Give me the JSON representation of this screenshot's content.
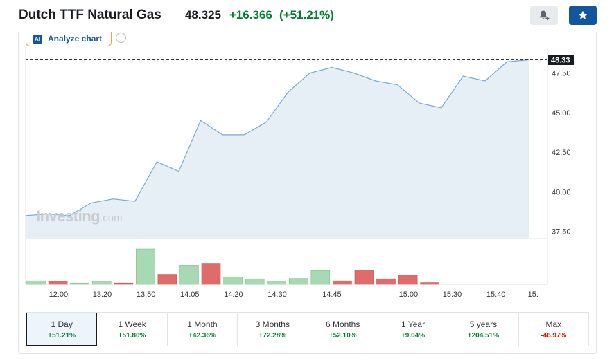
{
  "header": {
    "title": "Dutch TTF Natural Gas",
    "price": "48.325",
    "change": "+16.366",
    "change_pct": "(+51.21%)"
  },
  "toolbar": {
    "alert_icon": "bell-plus-icon",
    "watchlist_icon": "star-icon",
    "analyze_badge": "AI",
    "analyze_label": "Analyze chart",
    "info_icon": "info-icon",
    "info_glyph": "i"
  },
  "watermark": {
    "brand": "Investing",
    "suffix": ".com"
  },
  "colors": {
    "line": "#7aa7d4",
    "area": "#e6eef6",
    "up": "#a7d9b3",
    "down": "#e06b6b",
    "positive_text": "#007c32",
    "negative_text": "#d91400",
    "accent": "#1256a0"
  },
  "chart_data": {
    "type": "area",
    "last_price_label": "48.33",
    "last_price": 48.33,
    "y_ticks": [
      "47.50",
      "45.00",
      "42.50",
      "40.00",
      "37.50"
    ],
    "y_tick_values": [
      47.5,
      45.0,
      42.5,
      40.0,
      37.5
    ],
    "ylim": [
      37.05,
      49.05
    ],
    "x_ticks": [
      "12:00",
      "13:20",
      "13:50",
      "14:05",
      "14:20",
      "14:30",
      "14:45",
      "15:00",
      "15:30",
      "15:40",
      "15:"
    ],
    "x_tick_positions": [
      1.5,
      3.5,
      5.5,
      7.5,
      9.5,
      11.5,
      14.0,
      17.5,
      19.5,
      21.5,
      23.2
    ],
    "series": [
      {
        "values": [
          38.5,
          38.6,
          38.5,
          39.3,
          39.55,
          39.4,
          41.9,
          41.3,
          44.5,
          43.6,
          43.6,
          44.4,
          46.3,
          47.5,
          47.85,
          47.5,
          47.0,
          46.75,
          45.6,
          45.3,
          47.3,
          47.0,
          48.2,
          48.33
        ]
      }
    ],
    "volume": [
      {
        "v": 0.08,
        "dir": "up"
      },
      {
        "v": 0.07,
        "dir": "down"
      },
      {
        "v": 0.03,
        "dir": "up"
      },
      {
        "v": 0.07,
        "dir": "up"
      },
      {
        "v": 0.03,
        "dir": "down"
      },
      {
        "v": 0.85,
        "dir": "up"
      },
      {
        "v": 0.24,
        "dir": "down"
      },
      {
        "v": 0.46,
        "dir": "up"
      },
      {
        "v": 0.49,
        "dir": "down"
      },
      {
        "v": 0.18,
        "dir": "up"
      },
      {
        "v": 0.13,
        "dir": "up"
      },
      {
        "v": 0.07,
        "dir": "up"
      },
      {
        "v": 0.14,
        "dir": "up"
      },
      {
        "v": 0.33,
        "dir": "up"
      },
      {
        "v": 0.08,
        "dir": "down"
      },
      {
        "v": 0.34,
        "dir": "down"
      },
      {
        "v": 0.13,
        "dir": "down"
      },
      {
        "v": 0.22,
        "dir": "down"
      },
      {
        "v": 0.04,
        "dir": "down"
      }
    ]
  },
  "tabs": [
    {
      "label": "1 Day",
      "change": "+51.21%",
      "sign": "pos",
      "active": true
    },
    {
      "label": "1 Week",
      "change": "+51.80%",
      "sign": "pos"
    },
    {
      "label": "1 Month",
      "change": "+42.36%",
      "sign": "pos"
    },
    {
      "label": "3 Months",
      "change": "+72.28%",
      "sign": "pos"
    },
    {
      "label": "6 Months",
      "change": "+52.10%",
      "sign": "pos"
    },
    {
      "label": "1 Year",
      "change": "+9.04%",
      "sign": "pos"
    },
    {
      "label": "5 years",
      "change": "+204.51%",
      "sign": "pos"
    },
    {
      "label": "Max",
      "change": "-46.97%",
      "sign": "neg"
    }
  ]
}
